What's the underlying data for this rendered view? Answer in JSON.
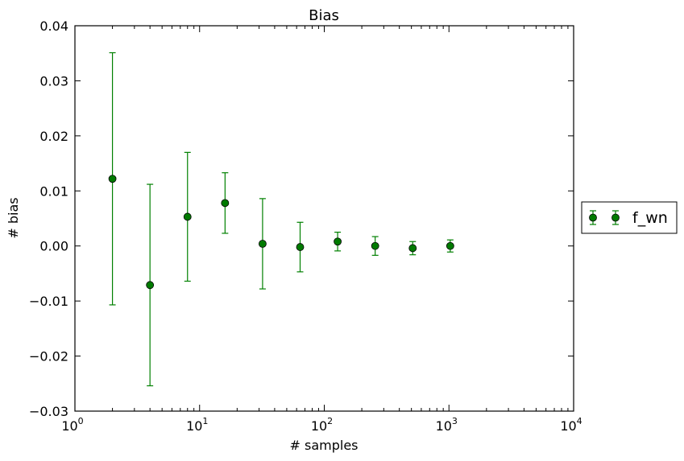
{
  "chart_data": {
    "type": "scatter",
    "title": "Bias",
    "xlabel": "# samples",
    "ylabel": "# bias",
    "xscale": "log",
    "xlim": [
      1,
      10000
    ],
    "ylim": [
      -0.03,
      0.04
    ],
    "x_ticks": [
      1,
      10,
      100,
      1000,
      10000
    ],
    "x_tick_base": "10",
    "x_tick_exponents": [
      "0",
      "1",
      "2",
      "3",
      "4"
    ],
    "y_ticks": [
      -0.03,
      -0.02,
      -0.01,
      0.0,
      0.01,
      0.02,
      0.03,
      0.04
    ],
    "y_tick_labels": [
      "−0.03",
      "−0.02",
      "−0.01",
      "0.00",
      "0.01",
      "0.02",
      "0.03",
      "0.04"
    ],
    "grid": false,
    "legend_position": "outside-right",
    "series": [
      {
        "name": "f_wn",
        "color": "#008000",
        "marker_color": "#007a00",
        "x": [
          2,
          4,
          8,
          16,
          32,
          64,
          128,
          256,
          512,
          1024
        ],
        "y": [
          0.0122,
          -0.0071,
          0.0053,
          0.0078,
          0.0004,
          -0.0002,
          0.0008,
          0.0,
          -0.0004,
          0.0
        ],
        "err": [
          0.0229,
          0.0183,
          0.0117,
          0.0055,
          0.0082,
          0.0045,
          0.0017,
          0.0017,
          0.0012,
          0.0011
        ]
      }
    ]
  }
}
